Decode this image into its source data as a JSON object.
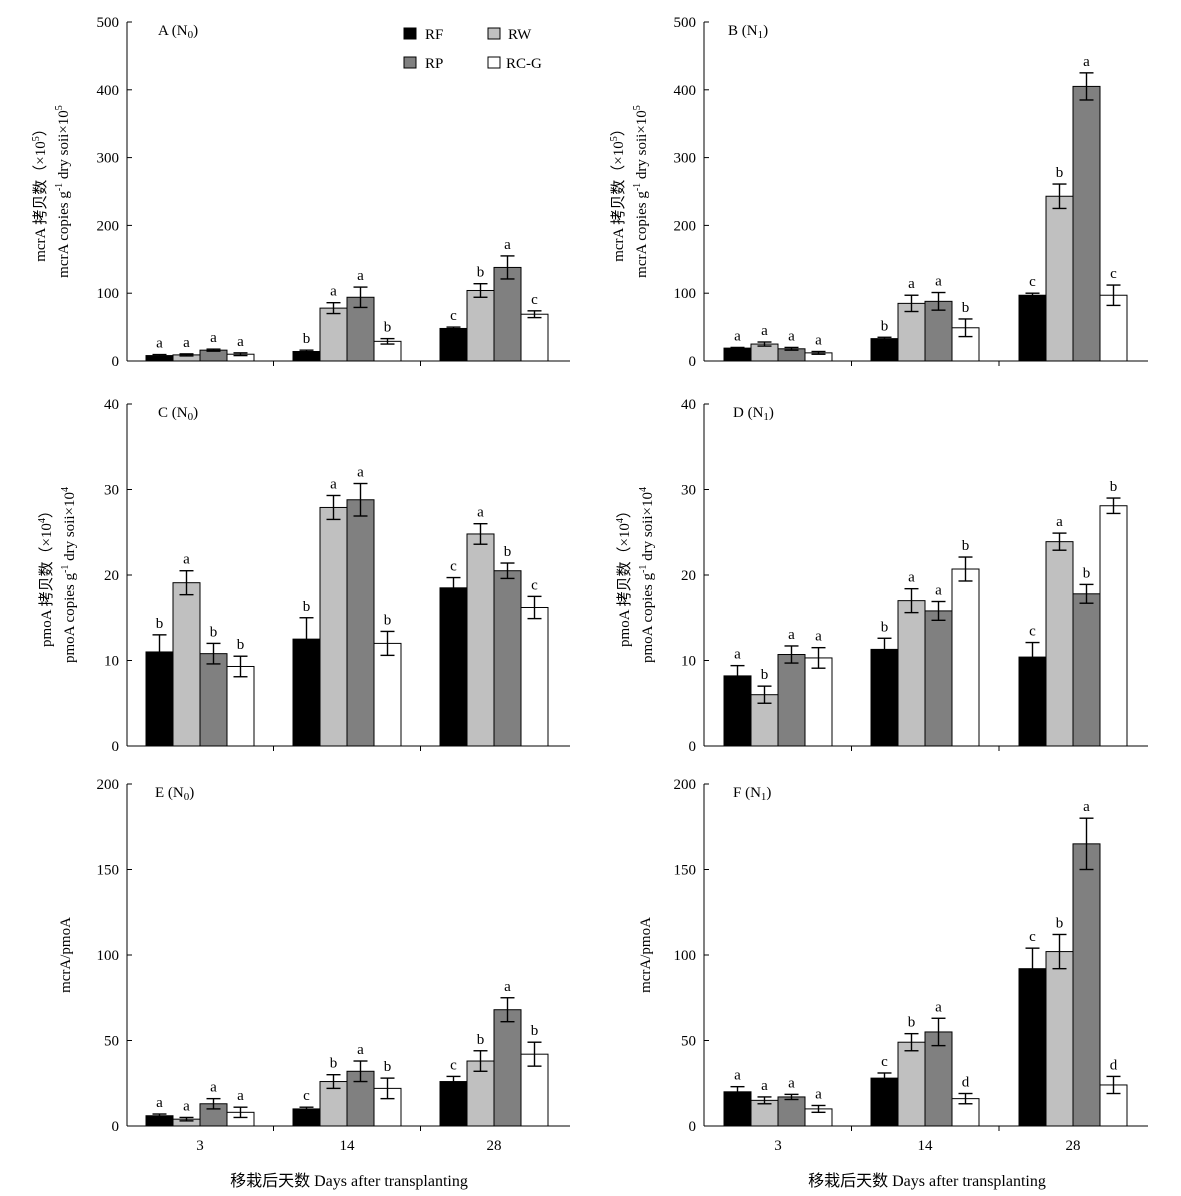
{
  "figure": {
    "xlabel_left": "移栽后天数 Days after transplanting",
    "xlabel_right": "移栽后天数 Days after transplanting"
  },
  "legend": {
    "entries": [
      {
        "label": "RF",
        "color": "#000000"
      },
      {
        "label": "RW",
        "color": "#c0c0c0"
      },
      {
        "label": "RP",
        "color": "#808080"
      },
      {
        "label": "RC-G",
        "color": "#ffffff"
      }
    ]
  },
  "chart_data": [
    {
      "type": "bar",
      "panel_title": "A (N",
      "panel_sub": "0",
      "ylabel_line1": "mcrA 拷贝数（×10",
      "ylabel_line1_sup": "5",
      "ylabel_line1_end": "）",
      "ylabel_line2_a": "mcrA copies g",
      "ylabel_line2_sup1": "-1",
      "ylabel_line2_b": " dry soii×10",
      "ylabel_line2_sup2": "5",
      "ylim": [
        0,
        500
      ],
      "yticks": [
        "0",
        "100",
        "200",
        "300",
        "400",
        "500"
      ],
      "categories": [
        "3",
        "14",
        "28"
      ],
      "show_xticks": false,
      "series": [
        {
          "name": "RF",
          "values": [
            8,
            14,
            48
          ],
          "errors": [
            1.5,
            2,
            2
          ],
          "letters": [
            "a",
            "b",
            "c"
          ]
        },
        {
          "name": "RW",
          "values": [
            9,
            78,
            104
          ],
          "errors": [
            1.5,
            8,
            10
          ],
          "letters": [
            "a",
            "a",
            "b"
          ]
        },
        {
          "name": "RP",
          "values": [
            16,
            94,
            138
          ],
          "errors": [
            1.5,
            15,
            17
          ],
          "letters": [
            "a",
            "a",
            "a"
          ]
        },
        {
          "name": "RC-G",
          "values": [
            10,
            29,
            69
          ],
          "errors": [
            2,
            4,
            5
          ],
          "letters": [
            "a",
            "b",
            "c"
          ]
        }
      ]
    },
    {
      "type": "bar",
      "panel_title": "B (N",
      "panel_sub": "1",
      "ylabel_line1": "mcrA 拷贝数（×10",
      "ylabel_line1_sup": "5",
      "ylabel_line1_end": "）",
      "ylabel_line2_a": "mcrA copies g",
      "ylabel_line2_sup1": "-1",
      "ylabel_line2_b": " dry soii×10",
      "ylabel_line2_sup2": "5",
      "ylim": [
        0,
        500
      ],
      "yticks": [
        "0",
        "100",
        "200",
        "300",
        "400",
        "500"
      ],
      "categories": [
        "3",
        "14",
        "28"
      ],
      "show_xticks": false,
      "series": [
        {
          "name": "RF",
          "values": [
            19,
            33,
            97
          ],
          "errors": [
            1,
            2,
            3
          ],
          "letters": [
            "a",
            "b",
            "c"
          ]
        },
        {
          "name": "RW",
          "values": [
            25,
            85,
            243
          ],
          "errors": [
            3,
            12,
            18
          ],
          "letters": [
            "a",
            "a",
            "b"
          ]
        },
        {
          "name": "RP",
          "values": [
            18,
            88,
            405
          ],
          "errors": [
            2,
            13,
            20
          ],
          "letters": [
            "a",
            "a",
            "a"
          ]
        },
        {
          "name": "RC-G",
          "values": [
            12,
            49,
            97
          ],
          "errors": [
            2,
            13,
            15
          ],
          "letters": [
            "a",
            "b",
            "c"
          ]
        }
      ]
    },
    {
      "type": "bar",
      "panel_title": "C (N",
      "panel_sub": "0",
      "ylabel_line1": "pmoA 拷贝数（×10",
      "ylabel_line1_sup": "4",
      "ylabel_line1_end": "）",
      "ylabel_line2_a": "pmoA copies g",
      "ylabel_line2_sup1": "-1",
      "ylabel_line2_b": " dry soii×10",
      "ylabel_line2_sup2": "4",
      "ylim": [
        0,
        40
      ],
      "yticks": [
        "0",
        "10",
        "20",
        "30",
        "40"
      ],
      "categories": [
        "3",
        "14",
        "28"
      ],
      "show_xticks": false,
      "series": [
        {
          "name": "RF",
          "values": [
            11.0,
            12.5,
            18.5
          ],
          "errors": [
            2.0,
            2.5,
            1.2
          ],
          "letters": [
            "b",
            "b",
            "c"
          ]
        },
        {
          "name": "RW",
          "values": [
            19.1,
            27.9,
            24.8
          ],
          "errors": [
            1.4,
            1.4,
            1.2
          ],
          "letters": [
            "a",
            "a",
            "a"
          ]
        },
        {
          "name": "RP",
          "values": [
            10.8,
            28.8,
            20.5
          ],
          "errors": [
            1.2,
            1.9,
            0.9
          ],
          "letters": [
            "b",
            "a",
            "b"
          ]
        },
        {
          "name": "RC-G",
          "values": [
            9.3,
            12.0,
            16.2
          ],
          "errors": [
            1.2,
            1.4,
            1.3
          ],
          "letters": [
            "b",
            "b",
            "c"
          ]
        }
      ]
    },
    {
      "type": "bar",
      "panel_title": "D (N",
      "panel_sub": "1",
      "ylabel_line1": "pmoA 拷贝数（×10",
      "ylabel_line1_sup": "4",
      "ylabel_line1_end": "）",
      "ylabel_line2_a": "pmoA copies g",
      "ylabel_line2_sup1": "-1",
      "ylabel_line2_b": " dry soii×10",
      "ylabel_line2_sup2": "4",
      "ylim": [
        0,
        40
      ],
      "yticks": [
        "0",
        "10",
        "20",
        "30",
        "40"
      ],
      "categories": [
        "3",
        "14",
        "28"
      ],
      "show_xticks": false,
      "series": [
        {
          "name": "RF",
          "values": [
            8.2,
            11.3,
            10.4
          ],
          "errors": [
            1.2,
            1.3,
            1.7
          ],
          "letters": [
            "a",
            "b",
            "c"
          ]
        },
        {
          "name": "RW",
          "values": [
            6.0,
            17.0,
            23.9
          ],
          "errors": [
            1.0,
            1.4,
            1.0
          ],
          "letters": [
            "b",
            "a",
            "a"
          ]
        },
        {
          "name": "RP",
          "values": [
            10.7,
            15.8,
            17.8
          ],
          "errors": [
            1.0,
            1.1,
            1.1
          ],
          "letters": [
            "a",
            "a",
            "b"
          ]
        },
        {
          "name": "RC-G",
          "values": [
            10.3,
            20.7,
            28.1
          ],
          "errors": [
            1.2,
            1.4,
            0.9
          ],
          "letters": [
            "a",
            "b",
            "b"
          ]
        }
      ]
    },
    {
      "type": "bar",
      "panel_title": "E (N",
      "panel_sub": "0",
      "ylabel_single": "mcrA/pmoA",
      "ylim": [
        0,
        200
      ],
      "yticks": [
        "0",
        "50",
        "100",
        "150",
        "200"
      ],
      "categories": [
        "3",
        "14",
        "28"
      ],
      "show_xticks": true,
      "series": [
        {
          "name": "RF",
          "values": [
            6,
            10,
            26
          ],
          "errors": [
            1,
            1,
            3
          ],
          "letters": [
            "a",
            "c",
            "c"
          ]
        },
        {
          "name": "RW",
          "values": [
            4,
            26,
            38
          ],
          "errors": [
            1,
            4,
            6
          ],
          "letters": [
            "a",
            "b",
            "b"
          ]
        },
        {
          "name": "RP",
          "values": [
            13,
            32,
            68
          ],
          "errors": [
            3,
            6,
            7
          ],
          "letters": [
            "a",
            "a",
            "a"
          ]
        },
        {
          "name": "RC-G",
          "values": [
            8,
            22,
            42
          ],
          "errors": [
            3,
            6,
            7
          ],
          "letters": [
            "a",
            "b",
            "b"
          ]
        }
      ]
    },
    {
      "type": "bar",
      "panel_title": "F (N",
      "panel_sub": "1",
      "ylabel_single": "mcrA/pmoA",
      "ylim": [
        0,
        200
      ],
      "yticks": [
        "0",
        "50",
        "100",
        "150",
        "200"
      ],
      "categories": [
        "3",
        "14",
        "28"
      ],
      "show_xticks": true,
      "series": [
        {
          "name": "RF",
          "values": [
            20,
            28,
            92
          ],
          "errors": [
            3,
            3,
            12
          ],
          "letters": [
            "a",
            "c",
            "c"
          ]
        },
        {
          "name": "RW",
          "values": [
            15,
            49,
            102
          ],
          "errors": [
            2,
            5,
            10
          ],
          "letters": [
            "a",
            "b",
            "b"
          ]
        },
        {
          "name": "RP",
          "values": [
            17,
            55,
            165
          ],
          "errors": [
            1.5,
            8,
            15
          ],
          "letters": [
            "a",
            "a",
            "a"
          ]
        },
        {
          "name": "RC-G",
          "values": [
            10,
            16,
            24
          ],
          "errors": [
            2,
            3,
            5
          ],
          "letters": [
            "a",
            "d",
            "d"
          ]
        }
      ]
    }
  ]
}
